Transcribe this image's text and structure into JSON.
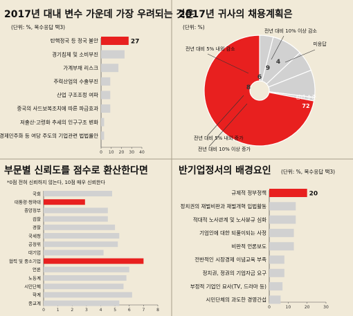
{
  "colors": {
    "background": "#f1ead8",
    "bar": "#d1d1d1",
    "highlight": "#e8201f",
    "text": "#111111",
    "axis": "#555555",
    "divider": "#a89f8a"
  },
  "chart_data": [
    {
      "type": "bar",
      "orientation": "horizontal",
      "title": "2017년 대내 변수 가운데 가장 우려되는 것은",
      "subtitle": "(단위: %, 복수응답 택3)",
      "categories": [
        "탄핵정국 등 정국 불안",
        "경기침체 및 소비부진",
        "가계부채 리스크",
        "주력산업의 수출부진",
        "산업 구조조정 여파",
        "중국의 사드보복조치에 따른 파급효과",
        "저출산·고령화 추세의 인구구조 변화",
        "경제민주화 등 여당 주도의 기업관련 법법률안"
      ],
      "values": [
        27,
        23,
        17,
        9,
        9,
        9,
        3,
        3
      ],
      "highlight_index": 0,
      "value_labels": [
        "27",
        "",
        "",
        "",
        "",
        "",
        "",
        ""
      ],
      "xlim": [
        0,
        40
      ],
      "ticks": [
        "0",
        "10",
        "20",
        "30",
        "40"
      ]
    },
    {
      "type": "pie",
      "title": "2017년 귀사의 채용계획은",
      "subtitle": "(단위: %)",
      "legend_position": "callouts",
      "slices": [
        {
          "label": "전년 수준",
          "value": 72,
          "highlight": true
        },
        {
          "label": "전년 대비 5% 내외 증가",
          "value": 8
        },
        {
          "label": "전년 대비 5% 내외 감소",
          "value": 6
        },
        {
          "label": "전년 대비 10% 이상 감소",
          "value": 9
        },
        {
          "label": "미응답",
          "value": 4
        },
        {
          "label": "전년 대비 10% 이상 증가",
          "value": 1
        }
      ],
      "inner_label": {
        "name": "전년 수준",
        "value": "72"
      }
    },
    {
      "type": "bar",
      "orientation": "horizontal",
      "title": "부문별 신뢰도를 점수로 환산한다면",
      "subtitle": "*0점 전혀 신뢰하지 않는다, 10점 매우 신뢰한다",
      "categories": [
        "국회",
        "대통령·청와대",
        "중앙정부",
        "검찰",
        "경찰",
        "국세청",
        "공정위",
        "대기업",
        "협력 및 중소기업",
        "언론",
        "노동계",
        "시민단체",
        "학계",
        "종교계"
      ],
      "values": [
        4.8,
        2.9,
        4.5,
        4.5,
        5.0,
        5.3,
        5.2,
        4.2,
        7.0,
        6.0,
        5.8,
        5.6,
        6.2,
        5.3
      ],
      "highlight_indices": [
        1,
        8
      ],
      "xlim": [
        0,
        8
      ],
      "ticks": [
        "0",
        "1",
        "2",
        "3",
        "4",
        "5",
        "6",
        "7",
        "8"
      ]
    },
    {
      "type": "bar",
      "orientation": "horizontal",
      "title": "반기업정서의 배경요인",
      "subtitle": "(단위: %, 복수응답 택3)",
      "categories": [
        "규제적 정부정책",
        "정치권의 재벌비판과 재벌개혁 입법활동",
        "적대적 노사관계 및 노사분규 심화",
        "기업인에 대한 되풀이되는 사정",
        "비판적 언론보도",
        "전반적인 시장경제 이념교육 부족",
        "정치권, 정권의 기업자금 요구",
        "부정적 기업인 묘사(TV, 드라마 등)",
        "시민단체의 과도한 경영간섭"
      ],
      "values": [
        20,
        14,
        14,
        13,
        13,
        8,
        8,
        7,
        6
      ],
      "highlight_index": 0,
      "value_labels": [
        "20",
        "",
        "",
        "",
        "",
        "",
        "",
        "",
        ""
      ],
      "xlim": [
        0,
        30
      ],
      "ticks": [
        "0",
        "10",
        "20",
        "30"
      ]
    }
  ]
}
